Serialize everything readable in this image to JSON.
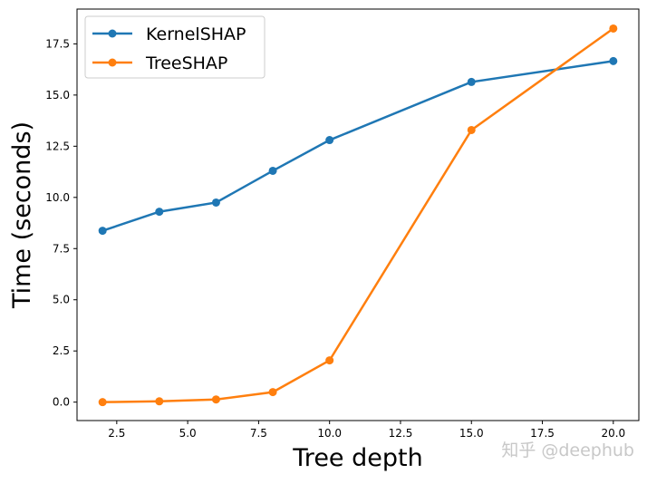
{
  "chart_data": {
    "type": "line",
    "title": "",
    "xlabel": "Tree depth",
    "ylabel": "Time (seconds)",
    "xlim": [
      1.1,
      20.9
    ],
    "ylim": [
      -0.9,
      19.2
    ],
    "xticks": [
      2.5,
      5.0,
      7.5,
      10.0,
      12.5,
      15.0,
      17.5,
      20.0
    ],
    "yticks": [
      0.0,
      2.5,
      5.0,
      7.5,
      10.0,
      12.5,
      15.0,
      17.5
    ],
    "grid": false,
    "legend_position": "top-left",
    "x": [
      2,
      4,
      6,
      8,
      10,
      15,
      20
    ],
    "series": [
      {
        "name": "KernelSHAP",
        "color": "#1f77b4",
        "values": [
          8.37,
          9.3,
          9.75,
          11.3,
          12.8,
          15.64,
          16.66
        ]
      },
      {
        "name": "TreeSHAP",
        "color": "#ff7f0e",
        "values": [
          0.0,
          0.04,
          0.13,
          0.49,
          2.04,
          13.29,
          18.25
        ]
      }
    ]
  },
  "watermark": "知乎 @deephub"
}
